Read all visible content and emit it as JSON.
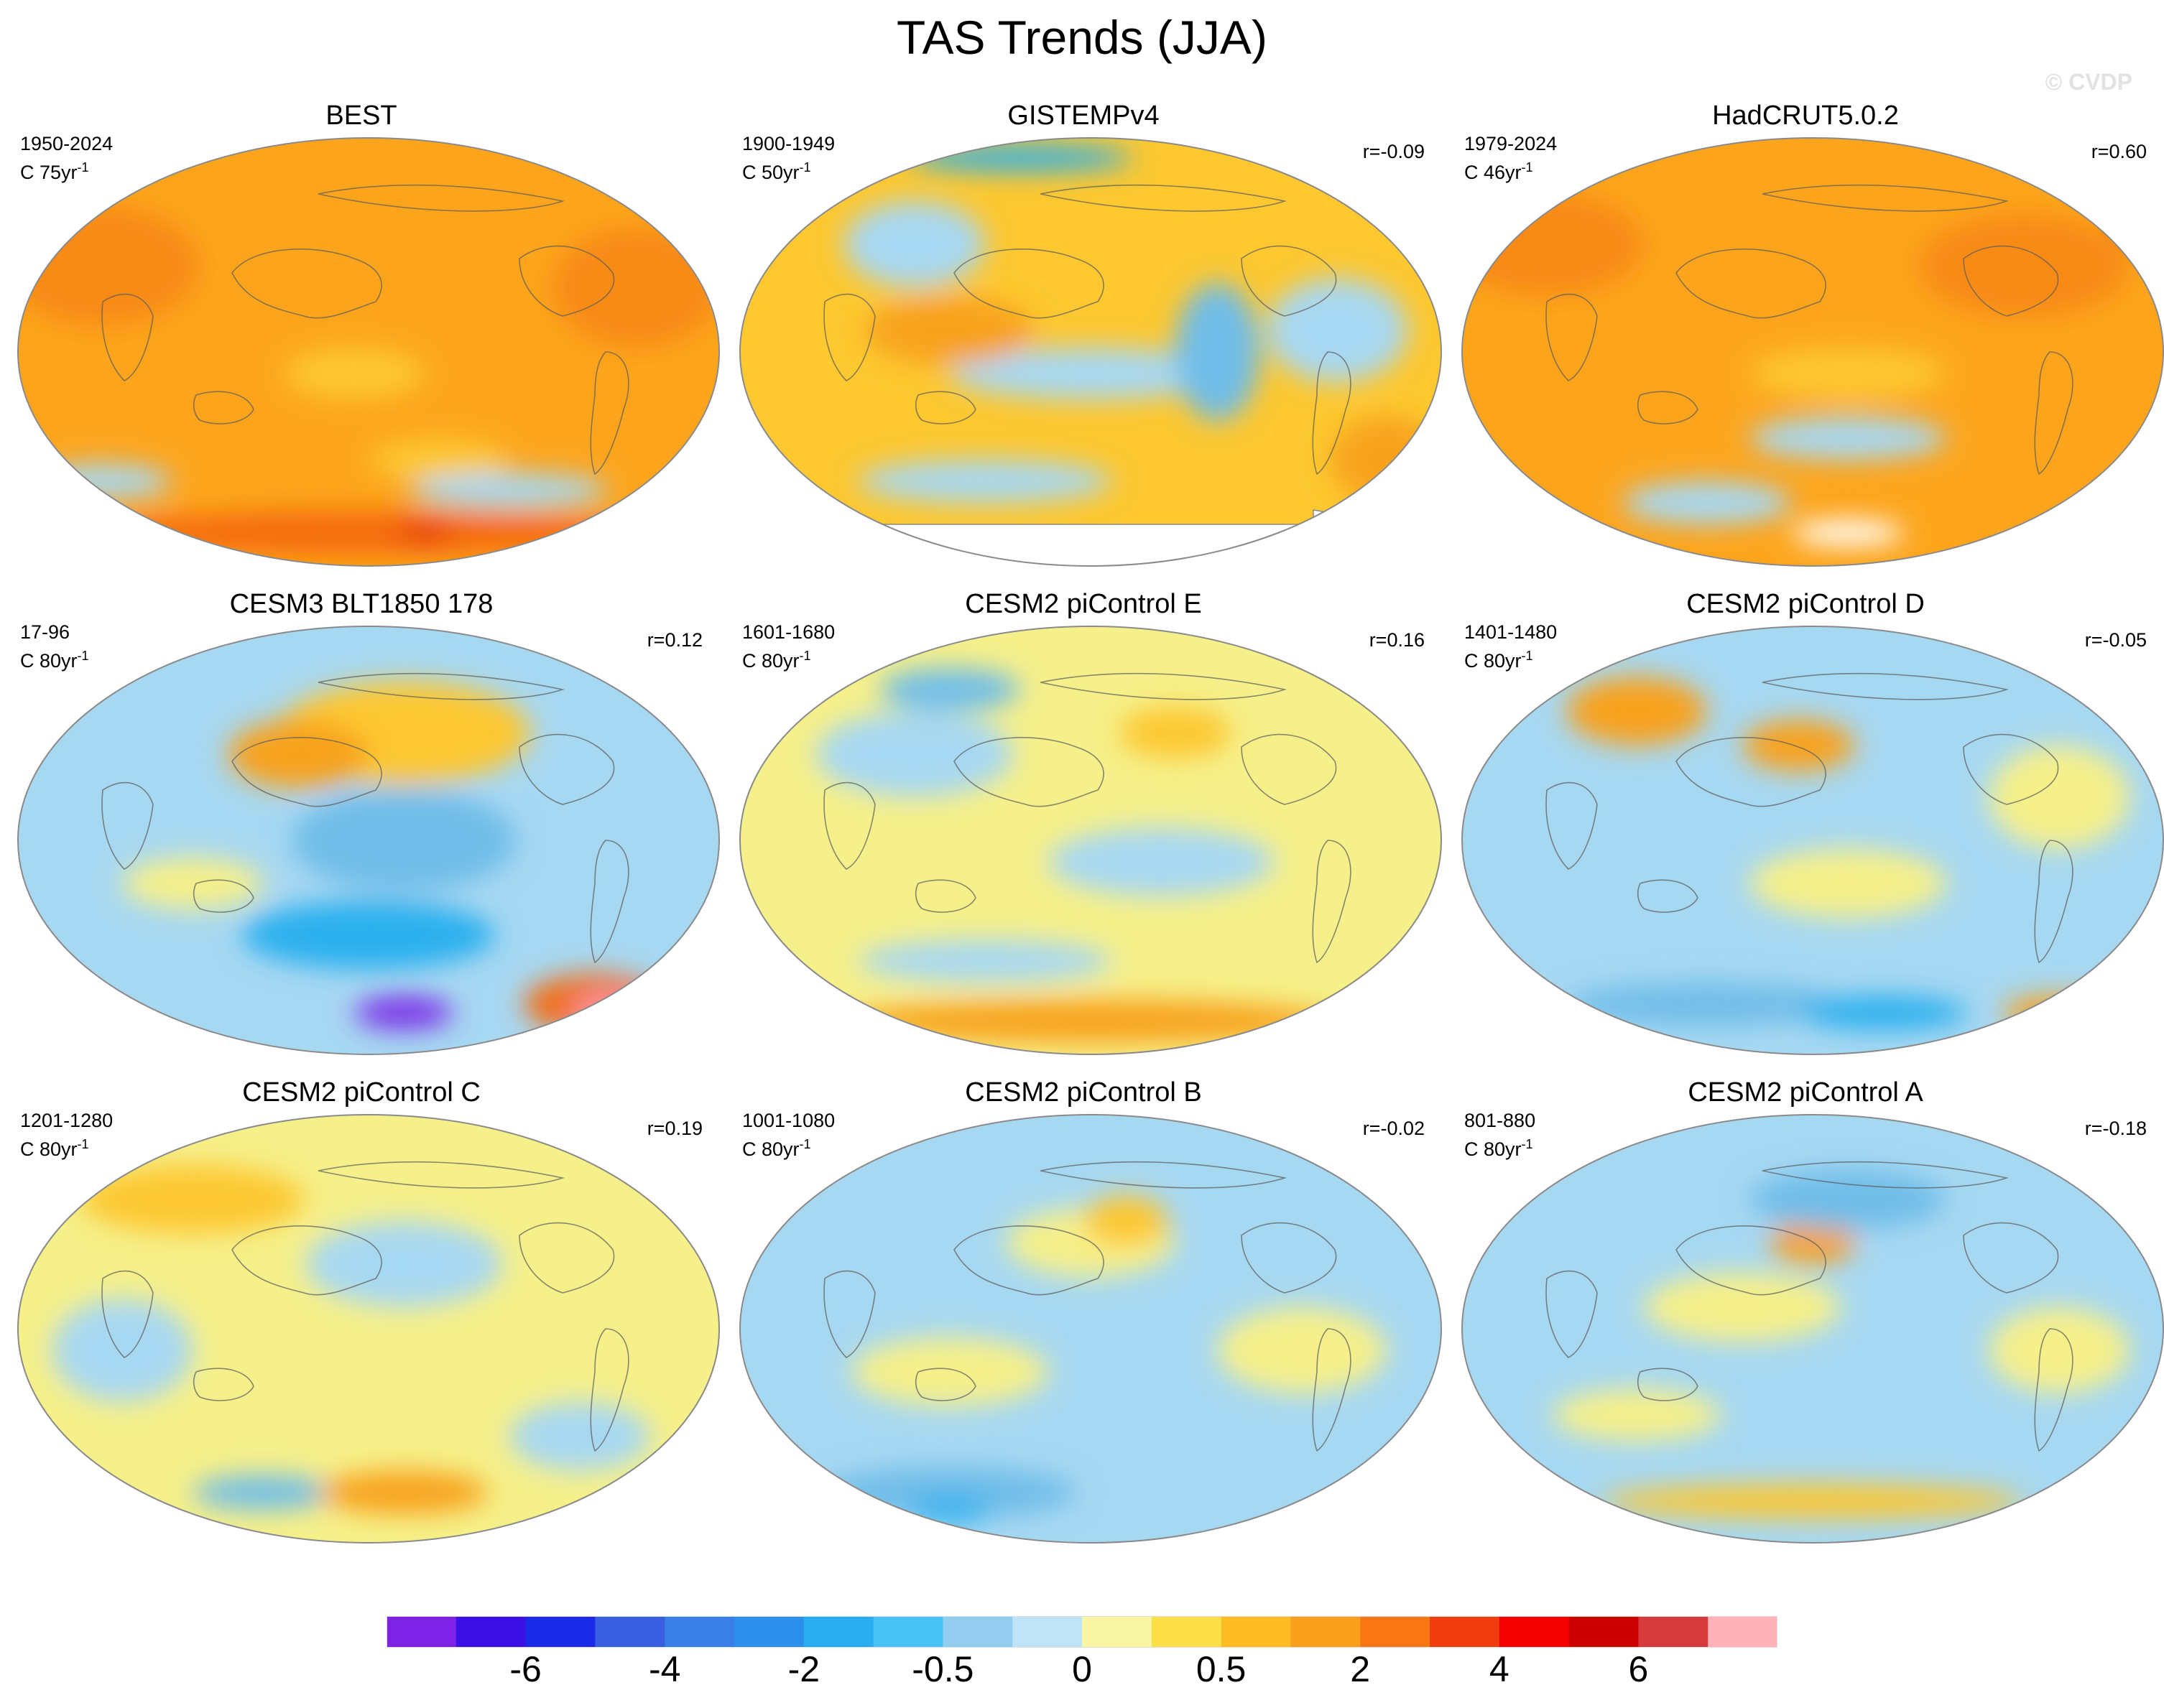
{
  "title": "TAS Trends (JJA)",
  "watermark": "© CVDP",
  "panels": [
    {
      "name": "BEST",
      "period": "1950-2024",
      "scale": "C 75yr",
      "exp": "-1",
      "r": "",
      "base": "#fca51c",
      "blobs": [
        [
          "#f88a14",
          0.12,
          0.3,
          0.14,
          0.14
        ],
        [
          "#f88a14",
          0.88,
          0.35,
          0.12,
          0.14
        ],
        [
          "#fdc830",
          0.48,
          0.55,
          0.1,
          0.06
        ],
        [
          "#fdc830",
          0.6,
          0.75,
          0.1,
          0.05
        ],
        [
          "#a7d8f2",
          0.12,
          0.8,
          0.1,
          0.04
        ],
        [
          "#a7d8f2",
          0.7,
          0.82,
          0.14,
          0.04
        ],
        [
          "#f56b10",
          0.5,
          0.92,
          0.4,
          0.05
        ],
        [
          "#e33012",
          0.58,
          0.92,
          0.04,
          0.02
        ]
      ],
      "mask": false
    },
    {
      "name": "GISTEMPv4",
      "period": "1900-1949",
      "scale": "C 50yr",
      "exp": "-1",
      "r": "r=-0.09",
      "base": "#fdc830",
      "blobs": [
        [
          "#a7d8f2",
          0.25,
          0.25,
          0.1,
          0.1
        ],
        [
          "#a7d8f2",
          0.5,
          0.55,
          0.2,
          0.06
        ],
        [
          "#a7d8f2",
          0.35,
          0.8,
          0.18,
          0.05
        ],
        [
          "#6fbde9",
          0.68,
          0.5,
          0.06,
          0.16
        ],
        [
          "#a7d8f2",
          0.85,
          0.45,
          0.1,
          0.12
        ],
        [
          "#f8a21e",
          0.3,
          0.45,
          0.12,
          0.08
        ],
        [
          "#f8a21e",
          0.92,
          0.75,
          0.08,
          0.1
        ],
        [
          "#29b0ee",
          0.4,
          0.05,
          0.16,
          0.03
        ]
      ],
      "mask": true
    },
    {
      "name": "HadCRUT5.0.2",
      "period": "1979-2024",
      "scale": "C 46yr",
      "exp": "-1",
      "r": "r=0.60",
      "base": "#fca51c",
      "blobs": [
        [
          "#f88a14",
          0.12,
          0.25,
          0.14,
          0.12
        ],
        [
          "#f88a14",
          0.8,
          0.3,
          0.15,
          0.12
        ],
        [
          "#fdc830",
          0.55,
          0.55,
          0.14,
          0.06
        ],
        [
          "#a7d8f2",
          0.55,
          0.7,
          0.14,
          0.05
        ],
        [
          "#a7d8f2",
          0.35,
          0.85,
          0.12,
          0.05
        ],
        [
          "#e33012",
          0.96,
          0.2,
          0.03,
          0.04
        ],
        [
          "#ffffff",
          0.55,
          0.92,
          0.08,
          0.03
        ]
      ],
      "mask": false
    },
    {
      "name": "CESM3 BLT1850 178",
      "period": "17-96",
      "scale": "C 80yr",
      "exp": "-1",
      "r": "r=0.12",
      "base": "#a7d8f2",
      "blobs": [
        [
          "#fdc830",
          0.55,
          0.25,
          0.18,
          0.12
        ],
        [
          "#f8a21e",
          0.4,
          0.3,
          0.1,
          0.08
        ],
        [
          "#6fbde9",
          0.55,
          0.5,
          0.16,
          0.12
        ],
        [
          "#29b0ee",
          0.5,
          0.72,
          0.18,
          0.08
        ],
        [
          "#7d34e8",
          0.55,
          0.9,
          0.07,
          0.04
        ],
        [
          "#f27018",
          0.82,
          0.88,
          0.1,
          0.07
        ],
        [
          "#ff9aa8",
          0.85,
          0.9,
          0.06,
          0.04
        ],
        [
          "#f6f08a",
          0.25,
          0.6,
          0.1,
          0.06
        ]
      ],
      "mask": false
    },
    {
      "name": "CESM2 piControl E",
      "period": "1601-1680",
      "scale": "C 80yr",
      "exp": "-1",
      "r": "r=0.16",
      "base": "#f6f08a",
      "blobs": [
        [
          "#a7d8f2",
          0.25,
          0.3,
          0.14,
          0.1
        ],
        [
          "#a7d8f2",
          0.6,
          0.55,
          0.16,
          0.08
        ],
        [
          "#a7d8f2",
          0.35,
          0.78,
          0.18,
          0.05
        ],
        [
          "#fdc830",
          0.62,
          0.25,
          0.08,
          0.06
        ],
        [
          "#f8a21e",
          0.5,
          0.92,
          0.35,
          0.05
        ],
        [
          "#6fbde9",
          0.3,
          0.15,
          0.1,
          0.05
        ]
      ],
      "mask": false
    },
    {
      "name": "CESM2 piControl D",
      "period": "1401-1480",
      "scale": "C 80yr",
      "exp": "-1",
      "r": "r=-0.05",
      "base": "#a7d8f2",
      "blobs": [
        [
          "#f8a21e",
          0.25,
          0.2,
          0.1,
          0.08
        ],
        [
          "#f8a21e",
          0.48,
          0.28,
          0.08,
          0.06
        ],
        [
          "#f6f08a",
          0.55,
          0.6,
          0.14,
          0.08
        ],
        [
          "#f6f08a",
          0.85,
          0.4,
          0.1,
          0.12
        ],
        [
          "#6fbde9",
          0.35,
          0.88,
          0.2,
          0.05
        ],
        [
          "#29b0ee",
          0.6,
          0.9,
          0.12,
          0.04
        ],
        [
          "#f8a21e",
          0.85,
          0.9,
          0.08,
          0.04
        ]
      ],
      "mask": false
    },
    {
      "name": "CESM2 piControl C",
      "period": "1201-1280",
      "scale": "C 80yr",
      "exp": "-1",
      "r": "r=0.19",
      "base": "#f6f08a",
      "blobs": [
        [
          "#fdc830",
          0.25,
          0.2,
          0.16,
          0.08
        ],
        [
          "#a7d8f2",
          0.55,
          0.35,
          0.14,
          0.1
        ],
        [
          "#a7d8f2",
          0.15,
          0.55,
          0.1,
          0.12
        ],
        [
          "#6fbde9",
          0.35,
          0.88,
          0.1,
          0.04
        ],
        [
          "#f8a21e",
          0.55,
          0.88,
          0.12,
          0.05
        ],
        [
          "#a7d8f2",
          0.8,
          0.75,
          0.1,
          0.08
        ]
      ],
      "mask": false
    },
    {
      "name": "CESM2 piControl B",
      "period": "1001-1080",
      "scale": "C 80yr",
      "exp": "-1",
      "r": "r=-0.02",
      "base": "#a7d8f2",
      "blobs": [
        [
          "#f6f08a",
          0.5,
          0.3,
          0.12,
          0.08
        ],
        [
          "#fdc830",
          0.55,
          0.25,
          0.06,
          0.06
        ],
        [
          "#f6f08a",
          0.3,
          0.6,
          0.14,
          0.08
        ],
        [
          "#6fbde9",
          0.3,
          0.88,
          0.18,
          0.06
        ],
        [
          "#29b0ee",
          0.3,
          0.92,
          0.06,
          0.03
        ],
        [
          "#f6f08a",
          0.8,
          0.55,
          0.12,
          0.1
        ]
      ],
      "mask": false
    },
    {
      "name": "CESM2 piControl A",
      "period": "801-880",
      "scale": "C 80yr",
      "exp": "-1",
      "r": "r=-0.18",
      "base": "#a7d8f2",
      "blobs": [
        [
          "#f6f08a",
          0.4,
          0.45,
          0.14,
          0.08
        ],
        [
          "#f8a21e",
          0.5,
          0.3,
          0.06,
          0.05
        ],
        [
          "#6fbde9",
          0.55,
          0.2,
          0.14,
          0.07
        ],
        [
          "#f6f08a",
          0.25,
          0.7,
          0.12,
          0.06
        ],
        [
          "#fdc830",
          0.5,
          0.9,
          0.3,
          0.04
        ],
        [
          "#f6f08a",
          0.85,
          0.55,
          0.1,
          0.1
        ]
      ],
      "mask": false
    }
  ],
  "colorbar": {
    "colors": [
      "#7d22e6",
      "#3a10e6",
      "#1a2ae8",
      "#3a5ee0",
      "#3a7ee8",
      "#2a90ec",
      "#28aef0",
      "#48c2f2",
      "#92cdef",
      "#bfe3f7",
      "#f8f5a4",
      "#fde048",
      "#fdbc22",
      "#fba01c",
      "#f87614",
      "#f13c10",
      "#f40000",
      "#cc0000",
      "#d63a3a",
      "#ffb3b8"
    ],
    "ticks": [
      "-6",
      "-4",
      "-2",
      "-0.5",
      "0",
      "0.5",
      "2",
      "4",
      "6"
    ],
    "tick_boundaries": [
      2,
      4,
      6,
      8,
      10,
      12,
      14,
      16,
      18
    ]
  }
}
